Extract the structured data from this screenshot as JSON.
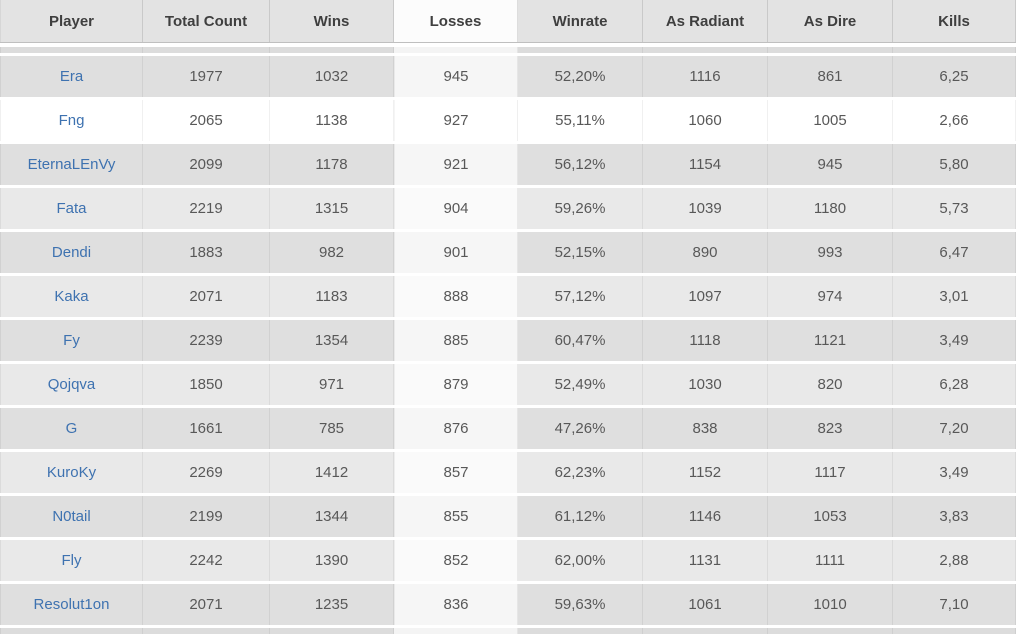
{
  "colors": {
    "header_bg": "#e3e3e3",
    "header_text": "#3f3f3f",
    "row_dark_bg": "#dfdfdf",
    "row_light_bg": "#e9e9e9",
    "row_highlight_bg": "#ffffff",
    "sorted_column_bg": "#f6f6f6",
    "link_blue": "#3e72b0",
    "value_text": "#585858"
  },
  "table": {
    "columns": [
      {
        "label": "Player",
        "sorted": false
      },
      {
        "label": "Total Count",
        "sorted": false
      },
      {
        "label": "Wins",
        "sorted": false
      },
      {
        "label": "Losses",
        "sorted": true
      },
      {
        "label": "Winrate",
        "sorted": false
      },
      {
        "label": "As Radiant",
        "sorted": false
      },
      {
        "label": "As Dire",
        "sorted": false
      },
      {
        "label": "Kills",
        "sorted": false
      }
    ],
    "sort": {
      "column": "Losses",
      "order": "descending"
    },
    "rows": [
      {
        "player": "Era",
        "cells": [
          "1977",
          "1032",
          "945",
          "52,20%",
          "1116",
          "861",
          "6,25"
        ],
        "highlighted": false
      },
      {
        "player": "Fng",
        "cells": [
          "2065",
          "1138",
          "927",
          "55,11%",
          "1060",
          "1005",
          "2,66"
        ],
        "highlighted": true
      },
      {
        "player": "EternaLEnVy",
        "cells": [
          "2099",
          "1178",
          "921",
          "56,12%",
          "1154",
          "945",
          "5,80"
        ],
        "highlighted": false
      },
      {
        "player": "Fata",
        "cells": [
          "2219",
          "1315",
          "904",
          "59,26%",
          "1039",
          "1180",
          "5,73"
        ],
        "highlighted": false
      },
      {
        "player": "Dendi",
        "cells": [
          "1883",
          "982",
          "901",
          "52,15%",
          "890",
          "993",
          "6,47"
        ],
        "highlighted": false
      },
      {
        "player": "Kaka",
        "cells": [
          "2071",
          "1183",
          "888",
          "57,12%",
          "1097",
          "974",
          "3,01"
        ],
        "highlighted": false
      },
      {
        "player": "Fy",
        "cells": [
          "2239",
          "1354",
          "885",
          "60,47%",
          "1118",
          "1121",
          "3,49"
        ],
        "highlighted": false
      },
      {
        "player": "Qojqva",
        "cells": [
          "1850",
          "971",
          "879",
          "52,49%",
          "1030",
          "820",
          "6,28"
        ],
        "highlighted": false
      },
      {
        "player": "G",
        "cells": [
          "1661",
          "785",
          "876",
          "47,26%",
          "838",
          "823",
          "7,20"
        ],
        "highlighted": false
      },
      {
        "player": "KuroKy",
        "cells": [
          "2269",
          "1412",
          "857",
          "62,23%",
          "1152",
          "1117",
          "3,49"
        ],
        "highlighted": false
      },
      {
        "player": "N0tail",
        "cells": [
          "2199",
          "1344",
          "855",
          "61,12%",
          "1146",
          "1053",
          "3,83"
        ],
        "highlighted": false
      },
      {
        "player": "Fly",
        "cells": [
          "2242",
          "1390",
          "852",
          "62,00%",
          "1131",
          "1111",
          "2,88"
        ],
        "highlighted": false
      },
      {
        "player": "Resolut1on",
        "cells": [
          "2071",
          "1235",
          "836",
          "59,63%",
          "1061",
          "1010",
          "7,10"
        ],
        "highlighted": false
      }
    ]
  }
}
